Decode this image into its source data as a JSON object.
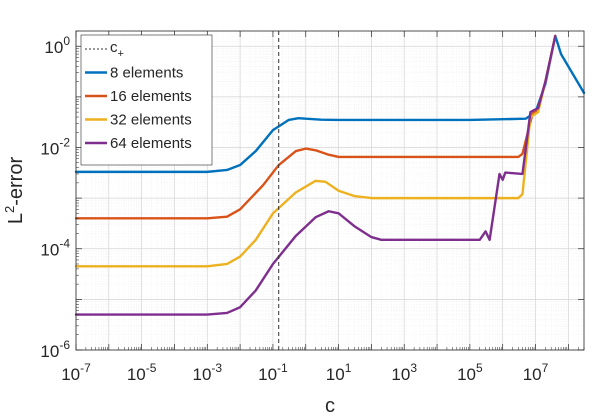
{
  "chart_data": {
    "type": "line",
    "xlabel": "c",
    "ylabel_main": "L",
    "ylabel_sup": "2",
    "ylabel_rest": "-error",
    "xscale": "log",
    "yscale": "log",
    "xlim": [
      1e-07,
      300000000.0
    ],
    "ylim": [
      1e-06,
      2
    ],
    "grid": true,
    "legend_position": "top-left",
    "x_ticks": [
      {
        "value": 1e-07,
        "base": "10",
        "exp": "-7"
      },
      {
        "value": 1e-05,
        "base": "10",
        "exp": "-5"
      },
      {
        "value": 0.001,
        "base": "10",
        "exp": "-3"
      },
      {
        "value": 0.1,
        "base": "10",
        "exp": "-1"
      },
      {
        "value": 10,
        "base": "10",
        "exp": "1"
      },
      {
        "value": 1000,
        "base": "10",
        "exp": "3"
      },
      {
        "value": 100000,
        "base": "10",
        "exp": "5"
      },
      {
        "value": 10000000,
        "base": "10",
        "exp": "7"
      }
    ],
    "y_ticks": [
      {
        "value": 1e-06,
        "base": "10",
        "exp": "-6"
      },
      {
        "value": 0.0001,
        "base": "10",
        "exp": "-4"
      },
      {
        "value": 0.01,
        "base": "10",
        "exp": "-2"
      },
      {
        "value": 1,
        "base": "10",
        "exp": "0"
      }
    ],
    "vline": {
      "x": 0.15,
      "label_main": "c",
      "label_sub": "+",
      "color": "#333333"
    },
    "series": [
      {
        "name": "8 elements",
        "color": "#0072BD",
        "points": [
          [
            1e-07,
            0.0033
          ],
          [
            0.001,
            0.0033
          ],
          [
            0.004,
            0.0036
          ],
          [
            0.01,
            0.0045
          ],
          [
            0.03,
            0.0085
          ],
          [
            0.1,
            0.022
          ],
          [
            0.3,
            0.035
          ],
          [
            0.6,
            0.038
          ],
          [
            1,
            0.037
          ],
          [
            3,
            0.0355
          ],
          [
            10,
            0.035
          ],
          [
            100000,
            0.035
          ],
          [
            5000000,
            0.037
          ],
          [
            10000000,
            0.05
          ],
          [
            20000000,
            0.18
          ],
          [
            40000000,
            1.6
          ],
          [
            60000000,
            0.7
          ],
          [
            300000000,
            0.12
          ]
        ]
      },
      {
        "name": "16 elements",
        "color": "#D95319",
        "points": [
          [
            1e-07,
            0.0004
          ],
          [
            0.001,
            0.0004
          ],
          [
            0.004,
            0.00043
          ],
          [
            0.01,
            0.0006
          ],
          [
            0.05,
            0.0018
          ],
          [
            0.15,
            0.0045
          ],
          [
            0.5,
            0.0085
          ],
          [
            1,
            0.0095
          ],
          [
            2,
            0.0088
          ],
          [
            5,
            0.0072
          ],
          [
            10,
            0.0065
          ],
          [
            3000000,
            0.0065
          ],
          [
            4000000,
            0.0075
          ],
          [
            8000000,
            0.045
          ],
          [
            12000000,
            0.06
          ],
          [
            20000000,
            0.2
          ],
          [
            40000000,
            1.6
          ]
        ]
      },
      {
        "name": "32 elements",
        "color": "#EDB120",
        "points": [
          [
            1e-07,
            4.5e-05
          ],
          [
            0.001,
            4.5e-05
          ],
          [
            0.004,
            5e-05
          ],
          [
            0.01,
            7e-05
          ],
          [
            0.03,
            0.00015
          ],
          [
            0.1,
            0.0005
          ],
          [
            0.5,
            0.0013
          ],
          [
            2,
            0.0022
          ],
          [
            4,
            0.0021
          ],
          [
            10,
            0.0014
          ],
          [
            30,
            0.0011
          ],
          [
            100,
            0.001
          ],
          [
            3000000,
            0.001
          ],
          [
            4000000,
            0.0012
          ],
          [
            7000000,
            0.04
          ],
          [
            12000000,
            0.05
          ],
          [
            20000000,
            0.2
          ],
          [
            40000000,
            1.6
          ]
        ]
      },
      {
        "name": "64 elements",
        "color": "#7E2F8E",
        "points": [
          [
            1e-07,
            5e-06
          ],
          [
            0.001,
            5e-06
          ],
          [
            0.004,
            5.4e-06
          ],
          [
            0.01,
            7e-06
          ],
          [
            0.03,
            1.5e-05
          ],
          [
            0.1,
            5e-05
          ],
          [
            0.5,
            0.00018
          ],
          [
            2,
            0.00042
          ],
          [
            5,
            0.00055
          ],
          [
            10,
            0.0005
          ],
          [
            30,
            0.00028
          ],
          [
            100,
            0.00017
          ],
          [
            200,
            0.00015
          ],
          [
            200000,
            0.00015
          ],
          [
            300000,
            0.00022
          ],
          [
            400000,
            0.00015
          ],
          [
            800000,
            0.003
          ],
          [
            1000000,
            0.0023
          ],
          [
            1200000,
            0.0032
          ],
          [
            4000000,
            0.003
          ],
          [
            7000000,
            0.05
          ],
          [
            12000000,
            0.06
          ],
          [
            20000000,
            0.2
          ],
          [
            40000000,
            1.6
          ]
        ]
      }
    ]
  }
}
